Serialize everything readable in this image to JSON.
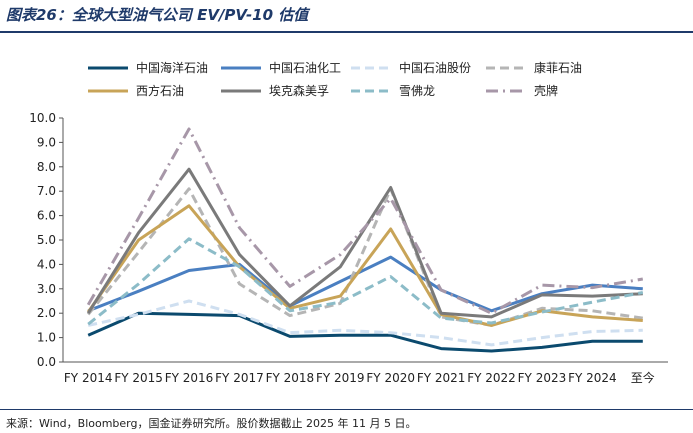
{
  "header": {
    "title": "图表26：全球大型油气公司 EV/PV-10 估值"
  },
  "footer": {
    "source": "来源：Wind，Bloomberg，国金证券研究所。股价数据截止 2025 年 11 月 5 日。"
  },
  "chart_data": {
    "type": "line",
    "title": "全球大型油气公司 EV/PV-10 估值",
    "xlabel": "",
    "ylabel": "",
    "ylim": [
      0,
      10
    ],
    "yticks": [
      "0.0",
      "1.0",
      "2.0",
      "3.0",
      "4.0",
      "5.0",
      "6.0",
      "7.0",
      "8.0",
      "9.0",
      "10.0"
    ],
    "categories": [
      "FY 2014",
      "FY 2015",
      "FY 2016",
      "FY 2017",
      "FY 2018",
      "FY 2019",
      "FY 2020",
      "FY 2021",
      "FY 2022",
      "FY 2023",
      "FY 2024",
      "至今"
    ],
    "legend_position": "top",
    "grid": false,
    "series": [
      {
        "name": "中国海洋石油",
        "color": "#0b4a6e",
        "dash": "solid",
        "values": [
          1.1,
          2.0,
          1.95,
          1.9,
          1.05,
          1.1,
          1.1,
          0.55,
          0.45,
          0.6,
          0.85,
          0.85
        ]
      },
      {
        "name": "中国石油化工",
        "color": "#4a7fc1",
        "dash": "solid",
        "values": [
          2.1,
          2.9,
          3.75,
          4.0,
          2.3,
          3.3,
          4.3,
          2.95,
          2.1,
          2.8,
          3.15,
          3.0
        ]
      },
      {
        "name": "中国石油股份",
        "color": "#cfdff0",
        "dash": "dash",
        "values": [
          1.5,
          1.95,
          2.5,
          1.95,
          1.2,
          1.3,
          1.2,
          1.0,
          0.7,
          1.0,
          1.25,
          1.3
        ]
      },
      {
        "name": "康菲石油",
        "color": "#b5b5b5",
        "dash": "dash",
        "values": [
          1.95,
          4.5,
          7.1,
          3.2,
          1.9,
          2.4,
          7.1,
          1.85,
          1.5,
          2.2,
          2.1,
          1.8
        ]
      },
      {
        "name": "西方石油",
        "color": "#c8a458",
        "dash": "solid",
        "values": [
          2.05,
          5.0,
          6.4,
          3.9,
          2.2,
          2.7,
          5.45,
          1.95,
          1.5,
          2.1,
          1.85,
          1.7
        ]
      },
      {
        "name": "埃克森美孚",
        "color": "#7a7a7a",
        "dash": "solid",
        "values": [
          2.0,
          5.3,
          7.9,
          4.4,
          2.3,
          3.9,
          7.15,
          2.0,
          1.85,
          2.75,
          2.7,
          2.8
        ]
      },
      {
        "name": "雪佛龙",
        "color": "#8cbcc8",
        "dash": "dash",
        "values": [
          1.55,
          3.2,
          5.05,
          3.9,
          2.1,
          2.45,
          3.5,
          1.8,
          1.6,
          2.05,
          2.45,
          2.85
        ]
      },
      {
        "name": "壳牌",
        "color": "#a797a8",
        "dash": "dashdot",
        "values": [
          2.35,
          5.9,
          9.55,
          5.5,
          3.1,
          4.4,
          6.7,
          2.95,
          2.0,
          3.15,
          3.05,
          3.4
        ]
      }
    ]
  }
}
